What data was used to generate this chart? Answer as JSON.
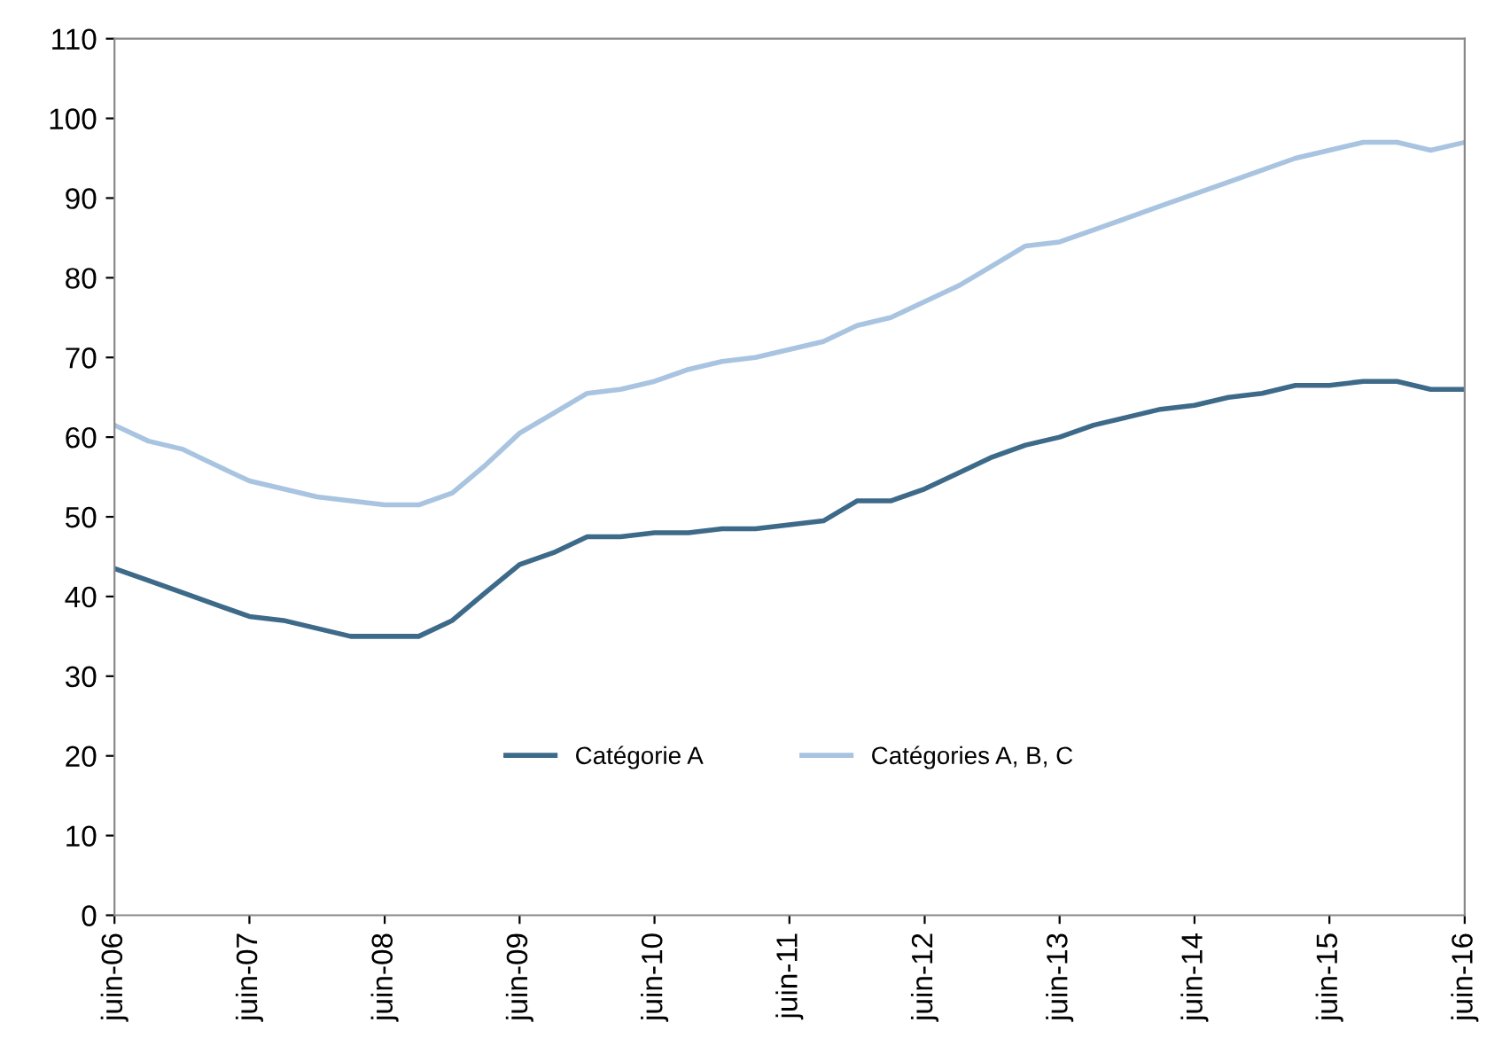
{
  "chart_data": {
    "type": "line",
    "x": [
      "2006-06",
      "2006-09",
      "2006-12",
      "2007-03",
      "2007-06",
      "2007-09",
      "2007-12",
      "2008-03",
      "2008-06",
      "2008-09",
      "2008-12",
      "2009-03",
      "2009-06",
      "2009-09",
      "2009-12",
      "2010-03",
      "2010-06",
      "2010-09",
      "2010-12",
      "2011-03",
      "2011-06",
      "2011-09",
      "2011-12",
      "2012-03",
      "2012-06",
      "2012-09",
      "2012-12",
      "2013-03",
      "2013-06",
      "2013-09",
      "2013-12",
      "2014-03",
      "2014-06",
      "2014-09",
      "2014-12",
      "2015-03",
      "2015-06",
      "2015-09",
      "2015-12",
      "2016-03",
      "2016-06"
    ],
    "series": [
      {
        "name": "Catégorie A",
        "color": "#3e6a8a",
        "values": [
          43.5,
          42,
          40.5,
          39,
          37.5,
          37,
          36,
          35,
          35,
          35,
          37,
          40.5,
          44,
          45.5,
          47.5,
          47.5,
          48,
          48,
          48.5,
          48.5,
          49,
          49.5,
          52,
          52,
          53.5,
          55.5,
          57.5,
          59,
          60,
          61.5,
          62.5,
          63.5,
          64,
          65,
          65.5,
          66.5,
          66.5,
          67,
          67,
          66,
          66
        ]
      },
      {
        "name": "Catégories A, B, C",
        "color": "#a8c4e0",
        "values": [
          61.5,
          59.5,
          58.5,
          56.5,
          54.5,
          53.5,
          52.5,
          52,
          51.5,
          51.5,
          53,
          56.5,
          60.5,
          63,
          65.5,
          66,
          67,
          68.5,
          69.5,
          70,
          71,
          72,
          74,
          75,
          77,
          79,
          81.5,
          84,
          84.5,
          86,
          87.5,
          89,
          90.5,
          92,
          93.5,
          95,
          96,
          97,
          97,
          96,
          97
        ]
      }
    ],
    "xlim": [
      "2006-06",
      "2016-06"
    ],
    "xticks": [
      {
        "value": "2006-06",
        "label": "juin-06"
      },
      {
        "value": "2007-06",
        "label": "juin-07"
      },
      {
        "value": "2008-06",
        "label": "juin-08"
      },
      {
        "value": "2009-06",
        "label": "juin-09"
      },
      {
        "value": "2010-06",
        "label": "juin-10"
      },
      {
        "value": "2011-06",
        "label": "juin-11"
      },
      {
        "value": "2012-06",
        "label": "juin-12"
      },
      {
        "value": "2013-06",
        "label": "juin-13"
      },
      {
        "value": "2014-06",
        "label": "juin-14"
      },
      {
        "value": "2015-06",
        "label": "juin-15"
      },
      {
        "value": "2016-06",
        "label": "juin-16"
      }
    ],
    "ylim": [
      0,
      110
    ],
    "yticks": [
      0,
      10,
      20,
      30,
      40,
      50,
      60,
      70,
      80,
      90,
      100,
      110
    ],
    "grid": false,
    "legend": "bottom",
    "marker": "none",
    "line_style": "solid"
  }
}
